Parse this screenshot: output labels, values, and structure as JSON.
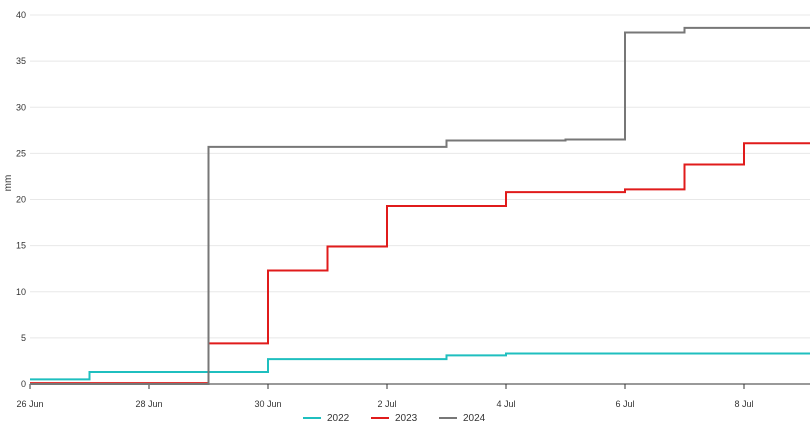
{
  "chart_data": {
    "type": "line",
    "step": true,
    "title": "",
    "xlabel": "",
    "ylabel": "mm",
    "ylim": [
      0,
      40
    ],
    "yticks": [
      "0",
      "5",
      "10",
      "15",
      "20",
      "25",
      "30",
      "35",
      "40"
    ],
    "xticks": [
      "26 Jun",
      "28 Jun",
      "30 Jun",
      "2 Jul",
      "4 Jul",
      "6 Jul",
      "8 Jul"
    ],
    "grid": true,
    "legend_position": "bottom-center",
    "series": [
      {
        "name": "2022",
        "color": "#1fbfbf",
        "points": [
          [
            "26 Jun",
            0.5
          ],
          [
            "27 Jun",
            1.3
          ],
          [
            "28 Jun",
            1.3
          ],
          [
            "29 Jun",
            1.3
          ],
          [
            "30 Jun",
            2.7
          ],
          [
            "1 Jul",
            2.7
          ],
          [
            "2 Jul",
            2.7
          ],
          [
            "3 Jul",
            3.1
          ],
          [
            "4 Jul",
            3.3
          ],
          [
            "5 Jul",
            3.3
          ],
          [
            "6 Jul",
            3.3
          ],
          [
            "7 Jul",
            3.3
          ],
          [
            "8 Jul",
            3.3
          ],
          [
            "9 Jul",
            3.3
          ]
        ]
      },
      {
        "name": "2023",
        "color": "#e01b1b",
        "points": [
          [
            "26 Jun",
            0.1
          ],
          [
            "27 Jun",
            0.1
          ],
          [
            "28 Jun",
            0.1
          ],
          [
            "29 Jun",
            4.4
          ],
          [
            "30 Jun",
            12.3
          ],
          [
            "1 Jul",
            14.9
          ],
          [
            "2 Jul",
            19.3
          ],
          [
            "3 Jul",
            19.3
          ],
          [
            "4 Jul",
            20.8
          ],
          [
            "5 Jul",
            20.8
          ],
          [
            "6 Jul",
            21.1
          ],
          [
            "7 Jul",
            23.8
          ],
          [
            "8 Jul",
            26.1
          ],
          [
            "9 Jul",
            26.1
          ]
        ]
      },
      {
        "name": "2024",
        "color": "#777777",
        "points": [
          [
            "26 Jun",
            0.0
          ],
          [
            "27 Jun",
            0.0
          ],
          [
            "28 Jun",
            0.0
          ],
          [
            "29 Jun",
            25.7
          ],
          [
            "30 Jun",
            25.7
          ],
          [
            "1 Jul",
            25.7
          ],
          [
            "2 Jul",
            25.7
          ],
          [
            "3 Jul",
            26.4
          ],
          [
            "4 Jul",
            26.4
          ],
          [
            "5 Jul",
            26.5
          ],
          [
            "6 Jul",
            38.1
          ],
          [
            "7 Jul",
            38.6
          ],
          [
            "8 Jul",
            38.6
          ],
          [
            "9 Jul",
            38.6
          ]
        ]
      }
    ]
  }
}
